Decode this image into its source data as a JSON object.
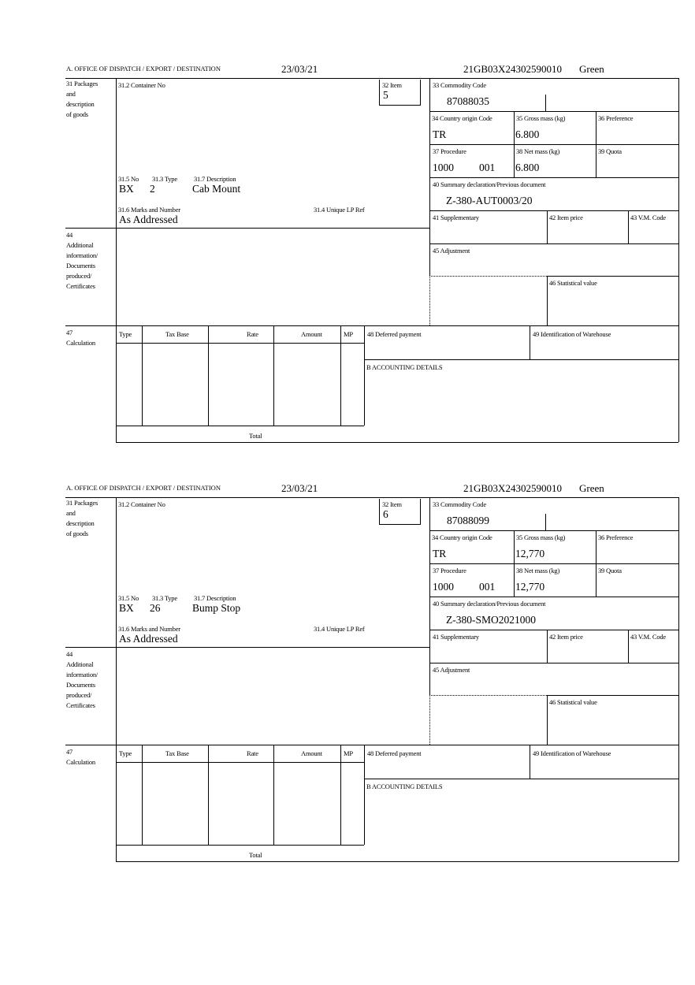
{
  "labels": {
    "office": "A.  OFFICE OF DISPATCH / EXPORT / DESTINATION",
    "box31_lines": [
      "31 Packages",
      "and",
      "description",
      "of goods"
    ],
    "container_no": "31.2 Container No",
    "item": "32 Item",
    "commodity_code": "33 Commodity Code",
    "country_origin": "34 Country origin Code",
    "gross_mass": "35 Gross mass (kg)",
    "preference": "36 Preference",
    "procedure": "37 Procedure",
    "net_mass": "38 Net mass (kg)",
    "quota": "39 Quota",
    "summary_declaration": "40 Summary declaration/Previous document",
    "supplementary": "41 Supplementary",
    "item_price": "42 Item price",
    "vm_code": "43 V.M. Code",
    "adjustment": "45 Adjustment",
    "statistical_value": "46 Statistical value",
    "pkg_no": "31.5 No",
    "pkg_type": "31.3 Type",
    "pkg_description": "31.7 Description",
    "marks_numbers": "31.6 Marks and Number",
    "unique_lp_ref": "31.4 Unique LP Ref",
    "box44_lines": [
      "44",
      "Additional",
      "information/",
      "Documents",
      "produced/",
      "Certificates"
    ],
    "box47_lines": [
      "47",
      "Calculation"
    ],
    "calc_columns": [
      "Type",
      "Tax Base",
      "Rate",
      "Amount",
      "MP"
    ],
    "total": "Total",
    "deferred_payment": "48 Deferred payment",
    "warehouse_id": "49 Identification of Warehouse",
    "accounting_details": "B ACCOUNTING DETAILS"
  },
  "forms": [
    {
      "date": "23/03/21",
      "reference": "21GB03X24302590010",
      "route": "Green",
      "item_no": "5",
      "commodity_code": "87088035",
      "country_origin": "TR",
      "gross_mass": "6.800",
      "procedure_code": "1000",
      "procedure_additional": "001",
      "net_mass": "6.800",
      "previous_document": "Z-380-AUT0003/20",
      "pkg_no": "BX",
      "pkg_type": "2",
      "pkg_description": "Cab Mount",
      "marks": "As Addressed"
    },
    {
      "date": "23/03/21",
      "reference": "21GB03X24302590010",
      "route": "Green",
      "item_no": "6",
      "commodity_code": "87088099",
      "country_origin": "TR",
      "gross_mass": "12,770",
      "procedure_code": "1000",
      "procedure_additional": "001",
      "net_mass": "12,770",
      "previous_document": "Z-380-SMO2021000",
      "pkg_no": "BX",
      "pkg_type": "26",
      "pkg_description": "Bump Stop",
      "marks": "As Addressed"
    }
  ]
}
